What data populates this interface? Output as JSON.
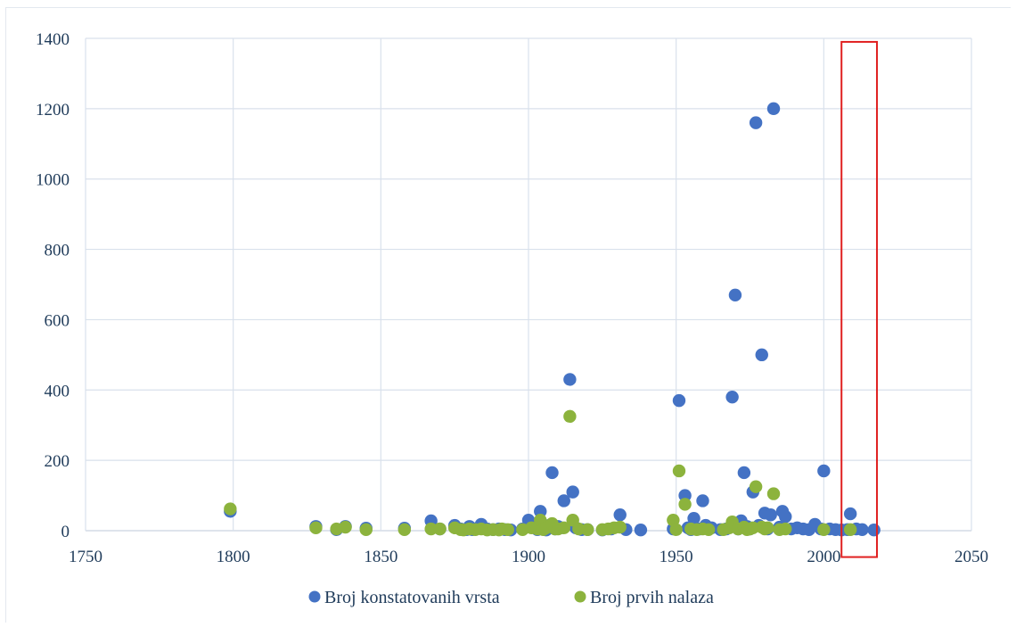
{
  "chart_data": {
    "type": "scatter",
    "title": "",
    "xlabel": "",
    "ylabel": "",
    "xlim": [
      1750,
      2050
    ],
    "ylim": [
      0,
      1400
    ],
    "xticks": [
      1750,
      1800,
      1850,
      1900,
      1950,
      2000,
      2050
    ],
    "yticks": [
      0,
      200,
      400,
      600,
      800,
      1000,
      1200,
      1400
    ],
    "grid": true,
    "legend_position": "bottom",
    "highlight_box": {
      "x_range": [
        2006,
        2018
      ],
      "y_range": [
        -75,
        1390
      ],
      "color": "#e02020"
    },
    "series": [
      {
        "name": "Broj konstatovanih vrsta",
        "color": "#4472c4",
        "points": [
          [
            1799,
            55
          ],
          [
            1828,
            12
          ],
          [
            1835,
            3
          ],
          [
            1838,
            12
          ],
          [
            1845,
            7
          ],
          [
            1858,
            7
          ],
          [
            1867,
            28
          ],
          [
            1870,
            5
          ],
          [
            1875,
            15
          ],
          [
            1877,
            5
          ],
          [
            1879,
            3
          ],
          [
            1880,
            12
          ],
          [
            1881,
            3
          ],
          [
            1883,
            8
          ],
          [
            1884,
            18
          ],
          [
            1886,
            5
          ],
          [
            1888,
            3
          ],
          [
            1890,
            5
          ],
          [
            1892,
            3
          ],
          [
            1894,
            2
          ],
          [
            1898,
            5
          ],
          [
            1900,
            30
          ],
          [
            1902,
            10
          ],
          [
            1903,
            3
          ],
          [
            1904,
            55
          ],
          [
            1906,
            2
          ],
          [
            1907,
            15
          ],
          [
            1908,
            165
          ],
          [
            1909,
            5
          ],
          [
            1910,
            12
          ],
          [
            1911,
            8
          ],
          [
            1912,
            85
          ],
          [
            1914,
            430
          ],
          [
            1915,
            110
          ],
          [
            1916,
            8
          ],
          [
            1918,
            3
          ],
          [
            1920,
            3
          ],
          [
            1925,
            2
          ],
          [
            1928,
            5
          ],
          [
            1931,
            45
          ],
          [
            1933,
            3
          ],
          [
            1938,
            2
          ],
          [
            1949,
            5
          ],
          [
            1951,
            370
          ],
          [
            1953,
            100
          ],
          [
            1954,
            8
          ],
          [
            1955,
            3
          ],
          [
            1956,
            35
          ],
          [
            1958,
            5
          ],
          [
            1959,
            85
          ],
          [
            1960,
            15
          ],
          [
            1962,
            8
          ],
          [
            1965,
            3
          ],
          [
            1967,
            5
          ],
          [
            1969,
            380
          ],
          [
            1970,
            670
          ],
          [
            1971,
            5
          ],
          [
            1972,
            28
          ],
          [
            1973,
            165
          ],
          [
            1974,
            12
          ],
          [
            1975,
            5
          ],
          [
            1976,
            110
          ],
          [
            1977,
            1160
          ],
          [
            1978,
            15
          ],
          [
            1979,
            500
          ],
          [
            1980,
            50
          ],
          [
            1981,
            5
          ],
          [
            1982,
            45
          ],
          [
            1983,
            1200
          ],
          [
            1985,
            10
          ],
          [
            1986,
            55
          ],
          [
            1987,
            40
          ],
          [
            1989,
            5
          ],
          [
            1991,
            8
          ],
          [
            1993,
            5
          ],
          [
            1995,
            3
          ],
          [
            1997,
            18
          ],
          [
            1999,
            5
          ],
          [
            2000,
            170
          ],
          [
            2002,
            5
          ],
          [
            2004,
            3
          ],
          [
            2006,
            2
          ],
          [
            2008,
            3
          ],
          [
            2009,
            48
          ],
          [
            2011,
            5
          ],
          [
            2013,
            3
          ],
          [
            2017,
            2
          ]
        ]
      },
      {
        "name": "Broj prvih nalaza",
        "color": "#8cb33d",
        "points": [
          [
            1799,
            62
          ],
          [
            1828,
            8
          ],
          [
            1835,
            5
          ],
          [
            1838,
            10
          ],
          [
            1845,
            3
          ],
          [
            1858,
            3
          ],
          [
            1867,
            5
          ],
          [
            1870,
            5
          ],
          [
            1875,
            8
          ],
          [
            1877,
            3
          ],
          [
            1878,
            2
          ],
          [
            1880,
            5
          ],
          [
            1882,
            3
          ],
          [
            1884,
            5
          ],
          [
            1886,
            2
          ],
          [
            1888,
            3
          ],
          [
            1890,
            2
          ],
          [
            1891,
            5
          ],
          [
            1893,
            3
          ],
          [
            1898,
            3
          ],
          [
            1901,
            8
          ],
          [
            1903,
            5
          ],
          [
            1904,
            30
          ],
          [
            1905,
            3
          ],
          [
            1906,
            8
          ],
          [
            1908,
            20
          ],
          [
            1909,
            5
          ],
          [
            1910,
            5
          ],
          [
            1912,
            8
          ],
          [
            1914,
            325
          ],
          [
            1915,
            30
          ],
          [
            1917,
            5
          ],
          [
            1920,
            3
          ],
          [
            1925,
            3
          ],
          [
            1927,
            5
          ],
          [
            1929,
            8
          ],
          [
            1931,
            10
          ],
          [
            1949,
            30
          ],
          [
            1950,
            3
          ],
          [
            1951,
            170
          ],
          [
            1953,
            75
          ],
          [
            1955,
            5
          ],
          [
            1957,
            3
          ],
          [
            1959,
            5
          ],
          [
            1961,
            3
          ],
          [
            1966,
            3
          ],
          [
            1968,
            8
          ],
          [
            1969,
            25
          ],
          [
            1971,
            5
          ],
          [
            1973,
            10
          ],
          [
            1974,
            3
          ],
          [
            1975,
            5
          ],
          [
            1976,
            8
          ],
          [
            1977,
            125
          ],
          [
            1979,
            10
          ],
          [
            1980,
            5
          ],
          [
            1981,
            8
          ],
          [
            1983,
            105
          ],
          [
            1985,
            3
          ],
          [
            1987,
            5
          ],
          [
            2000,
            3
          ],
          [
            2009,
            3
          ]
        ]
      }
    ]
  }
}
